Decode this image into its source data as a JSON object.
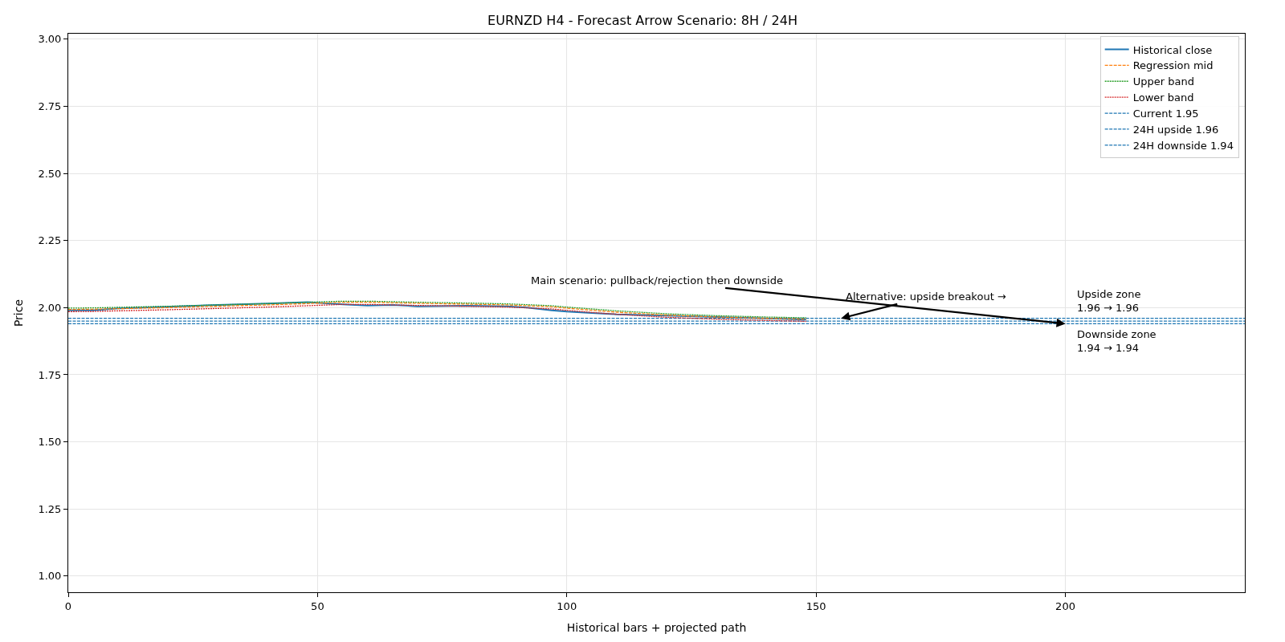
{
  "chart_data": {
    "type": "line",
    "title": "EURNZD H4 - Forecast Arrow Scenario: 8H / 24H",
    "xlabel": "Historical bars + projected path",
    "ylabel": "Price",
    "x": [
      0,
      5,
      10,
      20,
      30,
      40,
      48,
      55,
      60,
      65,
      70,
      80,
      88,
      92,
      97,
      100,
      105,
      110,
      120,
      130,
      140,
      148
    ],
    "series": [
      {
        "name": "Historical close",
        "color": "#1f77b4",
        "line_style": "solid",
        "values": [
          1.99,
          1.99,
          1.997,
          2.003,
          2.01,
          2.015,
          2.02,
          2.012,
          2.008,
          2.01,
          2.005,
          2.007,
          2.005,
          2.0,
          1.99,
          1.985,
          1.98,
          1.975,
          1.97,
          1.965,
          1.96,
          1.955
        ]
      },
      {
        "name": "Regression mid",
        "color": "#ff7f0e",
        "line_style": "dashed",
        "values": [
          1.993,
          1.994,
          1.996,
          2.0,
          2.005,
          2.01,
          2.015,
          2.02,
          2.02,
          2.018,
          2.016,
          2.013,
          2.01,
          2.007,
          2.003,
          1.998,
          1.99,
          1.983,
          1.972,
          1.965,
          1.96,
          1.957
        ]
      },
      {
        "name": "Upper band",
        "color": "#2ca02c",
        "line_style": "dotted",
        "values": [
          1.998,
          1.999,
          2.001,
          2.005,
          2.01,
          2.015,
          2.02,
          2.024,
          2.024,
          2.022,
          2.02,
          2.017,
          2.014,
          2.011,
          2.007,
          2.002,
          1.995,
          1.988,
          1.977,
          1.97,
          1.965,
          1.962
        ]
      },
      {
        "name": "Lower band",
        "color": "#d62728",
        "line_style": "dotted",
        "values": [
          1.985,
          1.986,
          1.988,
          1.992,
          1.997,
          2.002,
          2.007,
          2.012,
          2.012,
          2.01,
          2.008,
          2.005,
          2.002,
          1.999,
          1.995,
          1.99,
          1.982,
          1.975,
          1.964,
          1.957,
          1.952,
          1.949
        ]
      }
    ],
    "ref_lines": [
      {
        "axis": "y",
        "value": 1.95,
        "label": "Current 1.95",
        "color": "#1f77b4",
        "line_style": "dashed"
      },
      {
        "axis": "y",
        "value": 1.96,
        "label": "24H upside 1.96",
        "color": "#1f77b4",
        "line_style": "dashed"
      },
      {
        "axis": "y",
        "value": 1.94,
        "label": "24H downside 1.94",
        "color": "#1f77b4",
        "line_style": "dashed"
      }
    ],
    "annotations": [
      {
        "text": "Main scenario: pullback/rejection then downside",
        "x": 200,
        "y": 1.94
      },
      {
        "text": "Alternative: upside breakout →",
        "x": 155,
        "y": 1.96
      },
      {
        "text": "Upside zone\n1.96 → 1.96",
        "x": 202,
        "y": 1.96
      },
      {
        "text": "Downside zone\n1.94 → 1.94",
        "x": 202,
        "y": 1.94
      }
    ],
    "xlim": [
      0,
      236
    ],
    "xticks": [
      0,
      50,
      100,
      150,
      200
    ],
    "ylim": [
      0.94,
      3.02
    ],
    "yticks": [
      {
        "value": 1,
        "label": "1.00"
      },
      1.25,
      {
        "value": 1.5,
        "label": "1.50"
      },
      1.75,
      {
        "value": 2,
        "label": "2.00"
      },
      2.25,
      {
        "value": 2.5,
        "label": "2.50"
      },
      2.75,
      {
        "value": 3,
        "label": "3.00"
      }
    ],
    "grid": true,
    "legend": "top right"
  }
}
